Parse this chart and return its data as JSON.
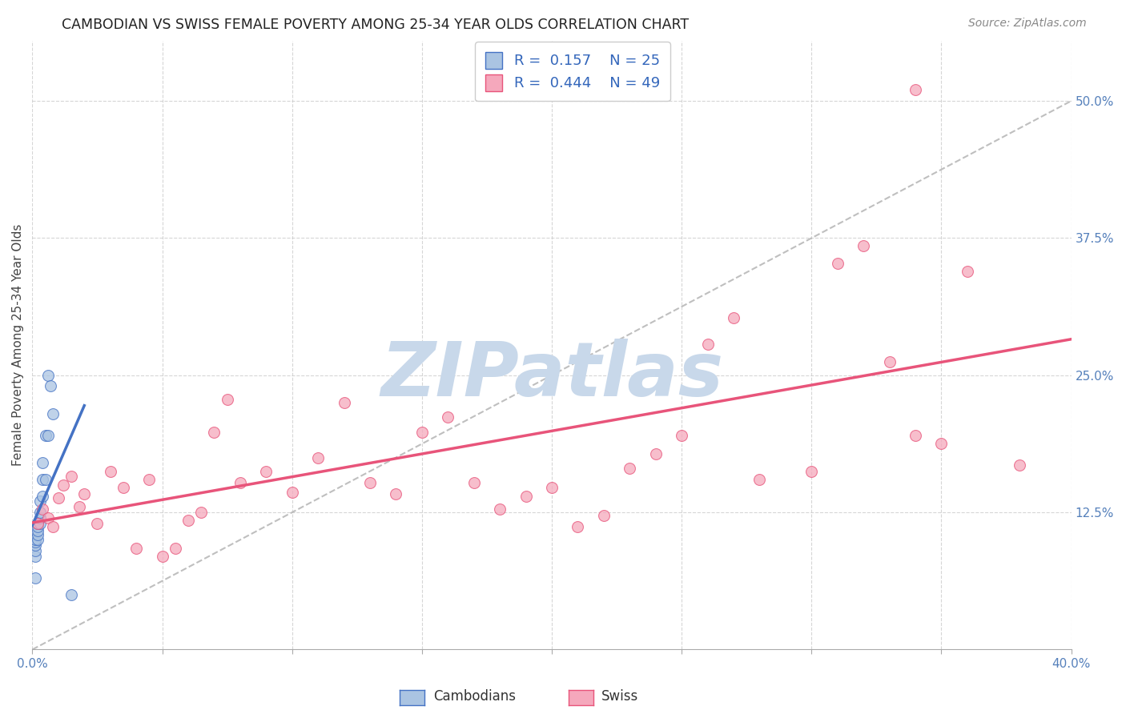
{
  "title": "CAMBODIAN VS SWISS FEMALE POVERTY AMONG 25-34 YEAR OLDS CORRELATION CHART",
  "source": "Source: ZipAtlas.com",
  "ylabel": "Female Poverty Among 25-34 Year Olds",
  "xlim": [
    0.0,
    0.4
  ],
  "ylim": [
    0.0,
    0.555
  ],
  "xticks": [
    0.0,
    0.05,
    0.1,
    0.15,
    0.2,
    0.25,
    0.3,
    0.35,
    0.4
  ],
  "xticklabels": [
    "0.0%",
    "",
    "",
    "",
    "",
    "",
    "",
    "",
    "40.0%"
  ],
  "ytick_positions": [
    0.125,
    0.25,
    0.375,
    0.5
  ],
  "ytick_labels": [
    "12.5%",
    "25.0%",
    "37.5%",
    "50.0%"
  ],
  "cambodian_color": "#aac4e2",
  "swiss_color": "#f5a8bc",
  "cambodian_line_color": "#4472c4",
  "swiss_line_color": "#e8547a",
  "diagonal_color": "#b8b8b8",
  "R_cambodian": 0.157,
  "N_cambodian": 25,
  "R_swiss": 0.444,
  "N_swiss": 49,
  "cambodian_x": [
    0.001,
    0.001,
    0.001,
    0.001,
    0.001,
    0.001,
    0.002,
    0.002,
    0.002,
    0.002,
    0.002,
    0.003,
    0.003,
    0.003,
    0.003,
    0.004,
    0.004,
    0.004,
    0.005,
    0.005,
    0.006,
    0.006,
    0.007,
    0.008,
    0.015
  ],
  "cambodian_y": [
    0.065,
    0.085,
    0.09,
    0.095,
    0.098,
    0.1,
    0.1,
    0.105,
    0.108,
    0.112,
    0.115,
    0.115,
    0.12,
    0.125,
    0.135,
    0.14,
    0.155,
    0.17,
    0.155,
    0.195,
    0.195,
    0.25,
    0.24,
    0.215,
    0.05
  ],
  "swiss_x": [
    0.002,
    0.004,
    0.006,
    0.008,
    0.01,
    0.012,
    0.015,
    0.018,
    0.02,
    0.025,
    0.03,
    0.035,
    0.04,
    0.045,
    0.05,
    0.055,
    0.06,
    0.065,
    0.07,
    0.075,
    0.08,
    0.09,
    0.1,
    0.11,
    0.12,
    0.13,
    0.14,
    0.15,
    0.16,
    0.17,
    0.18,
    0.19,
    0.2,
    0.21,
    0.22,
    0.23,
    0.24,
    0.25,
    0.26,
    0.27,
    0.28,
    0.3,
    0.31,
    0.32,
    0.33,
    0.34,
    0.35,
    0.36,
    0.38
  ],
  "swiss_y": [
    0.115,
    0.128,
    0.12,
    0.112,
    0.138,
    0.15,
    0.158,
    0.13,
    0.142,
    0.115,
    0.162,
    0.148,
    0.092,
    0.155,
    0.085,
    0.092,
    0.118,
    0.125,
    0.198,
    0.228,
    0.152,
    0.162,
    0.143,
    0.175,
    0.225,
    0.152,
    0.142,
    0.198,
    0.212,
    0.152,
    0.128,
    0.14,
    0.148,
    0.112,
    0.122,
    0.165,
    0.178,
    0.195,
    0.278,
    0.302,
    0.155,
    0.162,
    0.352,
    0.368,
    0.262,
    0.195,
    0.188,
    0.345,
    0.168
  ],
  "swiss_outlier_x": [
    0.34
  ],
  "swiss_outlier_y": [
    0.51
  ],
  "marker_size": 100,
  "alpha": 0.75,
  "title_fontsize": 12.5,
  "label_fontsize": 11,
  "tick_fontsize": 11,
  "legend_fontsize": 13,
  "source_fontsize": 10,
  "background_color": "#ffffff",
  "grid_color": "#cccccc",
  "watermark": "ZIPatlas",
  "watermark_color": "#c8d8ea"
}
